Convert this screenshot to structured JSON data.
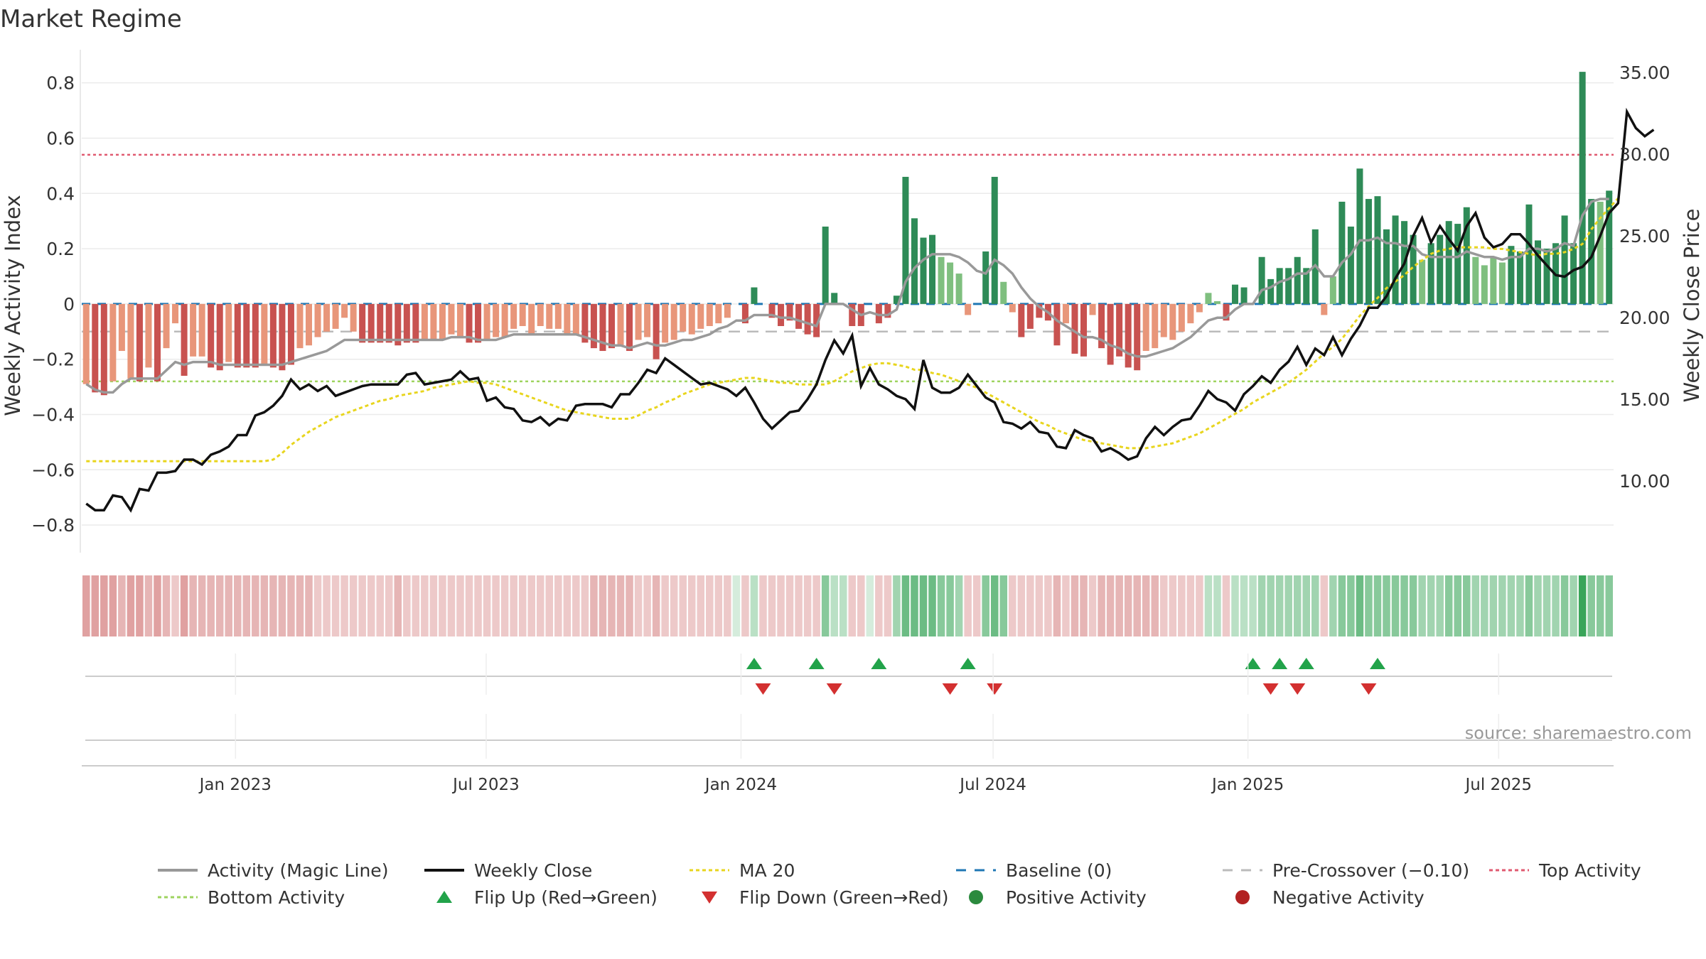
{
  "chart_data": {
    "type": "bar",
    "title": "Market Regime",
    "source": "source: sharemaestro.com",
    "ylabel_left": "Weekly Activity Index",
    "ylabel_right": "Weekly Close Price",
    "ylim_left": [
      -0.9,
      0.92
    ],
    "ylim_right": [
      5.6,
      36.4
    ],
    "yticks_left": [
      "−0.8",
      "−0.6",
      "−0.4",
      "−0.2",
      "0",
      "0.2",
      "0.4",
      "0.6",
      "0.8"
    ],
    "yticks_left_values": [
      -0.8,
      -0.6,
      -0.4,
      -0.2,
      0,
      0.2,
      0.4,
      0.6,
      0.8
    ],
    "yticks_right": [
      "10.00",
      "15.00",
      "20.00",
      "25.00",
      "30.00",
      "35.00"
    ],
    "yticks_right_values": [
      10,
      15,
      20,
      25,
      30,
      35
    ],
    "xticks": [
      "Jan 2023",
      "Jul 2023",
      "Jan 2024",
      "Jul 2024",
      "Jan 2025",
      "Jul 2025"
    ],
    "xticks_dates": [
      "2023-01-01",
      "2023-07-01",
      "2024-01-01",
      "2024-07-01",
      "2025-01-01",
      "2025-07-01"
    ],
    "x_start": "2022-09-12",
    "x_end": "2025-09-22",
    "grid": true,
    "legend_position": "bottom",
    "reference_lines": {
      "top_activity": 0.54,
      "bottom_activity": -0.28,
      "baseline": 0,
      "pre_crossover": -0.1
    },
    "activity_index": [
      -0.29,
      -0.32,
      -0.33,
      -0.28,
      -0.17,
      -0.27,
      -0.28,
      -0.23,
      -0.28,
      -0.16,
      -0.07,
      -0.26,
      -0.19,
      -0.19,
      -0.23,
      -0.24,
      -0.21,
      -0.23,
      -0.23,
      -0.23,
      -0.22,
      -0.23,
      -0.24,
      -0.22,
      -0.16,
      -0.15,
      -0.12,
      -0.1,
      -0.09,
      -0.05,
      -0.1,
      -0.14,
      -0.14,
      -0.14,
      -0.14,
      -0.15,
      -0.14,
      -0.14,
      -0.13,
      -0.13,
      -0.13,
      -0.11,
      -0.12,
      -0.14,
      -0.14,
      -0.13,
      -0.12,
      -0.12,
      -0.09,
      -0.08,
      -0.11,
      -0.08,
      -0.09,
      -0.09,
      -0.11,
      -0.11,
      -0.14,
      -0.16,
      -0.17,
      -0.16,
      -0.15,
      -0.17,
      -0.13,
      -0.12,
      -0.2,
      -0.14,
      -0.13,
      -0.1,
      -0.11,
      -0.09,
      -0.08,
      -0.07,
      -0.05,
      0.0,
      -0.07,
      0.06,
      0.0,
      -0.05,
      -0.08,
      -0.06,
      -0.09,
      -0.11,
      -0.12,
      0.28,
      0.04,
      0.0,
      -0.08,
      -0.08,
      0.0,
      -0.07,
      -0.05,
      0.03,
      0.46,
      0.31,
      0.24,
      0.25,
      0.17,
      0.15,
      0.11,
      -0.04,
      0.0,
      0.19,
      0.46,
      0.08,
      -0.03,
      -0.12,
      -0.09,
      -0.05,
      -0.06,
      -0.15,
      -0.07,
      -0.18,
      -0.19,
      -0.04,
      -0.16,
      -0.22,
      -0.19,
      -0.23,
      -0.24,
      -0.17,
      -0.16,
      -0.12,
      -0.13,
      -0.1,
      -0.07,
      -0.03,
      0.04,
      0.01,
      -0.06,
      0.07,
      0.06,
      0.0,
      0.17,
      0.09,
      0.13,
      0.13,
      0.17,
      0.13,
      0.27,
      -0.04,
      0.1,
      0.37,
      0.28,
      0.49,
      0.38,
      0.39,
      0.27,
      0.32,
      0.3,
      0.25,
      0.16,
      0.22,
      0.25,
      0.3,
      0.29,
      0.35,
      0.17,
      0.14,
      0.17,
      0.15,
      0.21,
      0.19,
      0.36,
      0.23,
      0.2,
      0.22,
      0.32,
      0.22,
      0.84,
      0.38,
      0.37,
      0.41
    ],
    "activity_magic_line": [
      -0.29,
      -0.31,
      -0.32,
      -0.32,
      -0.29,
      -0.27,
      -0.27,
      -0.27,
      -0.27,
      -0.24,
      -0.21,
      -0.22,
      -0.21,
      -0.21,
      -0.21,
      -0.22,
      -0.22,
      -0.22,
      -0.22,
      -0.22,
      -0.22,
      -0.22,
      -0.22,
      -0.21,
      -0.2,
      -0.19,
      -0.18,
      -0.17,
      -0.15,
      -0.13,
      -0.13,
      -0.13,
      -0.13,
      -0.13,
      -0.13,
      -0.13,
      -0.13,
      -0.13,
      -0.13,
      -0.13,
      -0.13,
      -0.12,
      -0.12,
      -0.12,
      -0.13,
      -0.13,
      -0.13,
      -0.12,
      -0.11,
      -0.11,
      -0.11,
      -0.11,
      -0.11,
      -0.11,
      -0.11,
      -0.11,
      -0.12,
      -0.13,
      -0.14,
      -0.15,
      -0.15,
      -0.16,
      -0.15,
      -0.14,
      -0.15,
      -0.15,
      -0.14,
      -0.13,
      -0.13,
      -0.12,
      -0.11,
      -0.09,
      -0.08,
      -0.06,
      -0.06,
      -0.04,
      -0.04,
      -0.04,
      -0.05,
      -0.05,
      -0.06,
      -0.07,
      -0.08,
      0.0,
      0.0,
      0.0,
      -0.02,
      -0.04,
      -0.03,
      -0.04,
      -0.04,
      -0.02,
      0.08,
      0.13,
      0.16,
      0.18,
      0.18,
      0.18,
      0.17,
      0.15,
      0.12,
      0.11,
      0.16,
      0.14,
      0.11,
      0.06,
      0.02,
      -0.01,
      -0.03,
      -0.06,
      -0.08,
      -0.1,
      -0.12,
      -0.12,
      -0.13,
      -0.15,
      -0.16,
      -0.18,
      -0.19,
      -0.19,
      -0.18,
      -0.17,
      -0.16,
      -0.14,
      -0.12,
      -0.09,
      -0.06,
      -0.05,
      -0.05,
      -0.02,
      0.0,
      0.0,
      0.05,
      0.06,
      0.08,
      0.09,
      0.11,
      0.11,
      0.14,
      0.1,
      0.1,
      0.15,
      0.18,
      0.23,
      0.23,
      0.24,
      0.22,
      0.22,
      0.21,
      0.21,
      0.18,
      0.17,
      0.17,
      0.17,
      0.17,
      0.19,
      0.18,
      0.17,
      0.17,
      0.16,
      0.17,
      0.17,
      0.2,
      0.2,
      0.19,
      0.2,
      0.22,
      0.21,
      0.32,
      0.37,
      0.38,
      0.38
    ],
    "weekly_close": [
      8.6,
      8.2,
      8.2,
      9.1,
      9.0,
      8.2,
      9.5,
      9.4,
      10.5,
      10.5,
      10.6,
      11.3,
      11.3,
      11.0,
      11.6,
      11.8,
      12.1,
      12.8,
      12.8,
      14.0,
      14.2,
      14.6,
      15.2,
      16.2,
      15.6,
      15.9,
      15.5,
      15.8,
      15.2,
      15.4,
      15.6,
      15.8,
      15.9,
      15.9,
      15.9,
      15.9,
      16.5,
      16.6,
      15.9,
      16.0,
      16.1,
      16.2,
      16.7,
      16.2,
      16.3,
      14.9,
      15.1,
      14.5,
      14.4,
      13.7,
      13.6,
      13.9,
      13.4,
      13.8,
      13.7,
      14.6,
      14.7,
      14.7,
      14.7,
      14.5,
      15.3,
      15.3,
      16.0,
      16.8,
      16.6,
      17.5,
      17.1,
      16.7,
      16.3,
      15.9,
      16.0,
      15.8,
      15.6,
      15.2,
      15.7,
      14.8,
      13.8,
      13.2,
      13.7,
      14.2,
      14.3,
      15.0,
      15.9,
      17.4,
      18.6,
      17.8,
      18.9,
      15.8,
      16.9,
      15.9,
      15.6,
      15.2,
      15.0,
      14.4,
      17.4,
      15.7,
      15.4,
      15.4,
      15.7,
      16.5,
      15.8,
      15.1,
      14.8,
      13.6,
      13.5,
      13.2,
      13.6,
      13.0,
      12.9,
      12.1,
      12.0,
      13.1,
      12.8,
      12.6,
      11.8,
      12.0,
      11.7,
      11.3,
      11.5,
      12.6,
      13.3,
      12.8,
      13.3,
      13.7,
      13.8,
      14.6,
      15.5,
      15.0,
      14.8,
      14.3,
      15.3,
      15.8,
      16.4,
      16.0,
      16.8,
      17.3,
      18.2,
      17.1,
      18.1,
      17.7,
      18.8,
      17.7,
      18.7,
      19.5,
      20.6,
      20.6,
      21.3,
      22.4,
      23.3,
      25.0,
      26.1,
      24.6,
      25.6,
      24.8,
      24.1,
      25.6,
      26.4,
      24.9,
      24.3,
      24.5,
      25.1,
      25.1,
      24.5,
      23.8,
      23.2,
      22.6,
      22.5,
      22.9,
      23.1,
      23.7,
      25.0,
      26.4,
      27.0,
      32.6,
      31.6,
      31.1,
      31.5
    ],
    "ma20": [
      11.2,
      11.2,
      11.2,
      11.2,
      11.2,
      11.2,
      11.2,
      11.2,
      11.2,
      11.2,
      11.2,
      11.2,
      11.2,
      11.2,
      11.2,
      11.2,
      11.2,
      11.2,
      11.2,
      11.2,
      11.2,
      11.3,
      11.7,
      12.2,
      12.6,
      13.0,
      13.3,
      13.6,
      13.9,
      14.1,
      14.3,
      14.5,
      14.7,
      14.9,
      15.0,
      15.2,
      15.3,
      15.4,
      15.5,
      15.7,
      15.8,
      15.9,
      16.0,
      16.1,
      16.0,
      16.0,
      15.9,
      15.7,
      15.5,
      15.3,
      15.1,
      14.9,
      14.7,
      14.5,
      14.3,
      14.2,
      14.1,
      14.0,
      13.9,
      13.8,
      13.8,
      13.8,
      14.0,
      14.3,
      14.5,
      14.8,
      15.0,
      15.3,
      15.5,
      15.7,
      15.9,
      16.0,
      16.1,
      16.2,
      16.3,
      16.3,
      16.2,
      16.1,
      16.0,
      16.0,
      15.9,
      15.9,
      15.9,
      15.9,
      16.1,
      16.4,
      16.7,
      16.9,
      17.1,
      17.2,
      17.2,
      17.1,
      17.0,
      16.8,
      16.8,
      16.6,
      16.5,
      16.3,
      16.1,
      15.9,
      15.7,
      15.4,
      15.1,
      14.8,
      14.5,
      14.2,
      13.9,
      13.6,
      13.4,
      13.1,
      12.9,
      12.7,
      12.5,
      12.4,
      12.3,
      12.2,
      12.1,
      12.0,
      12.0,
      12.0,
      12.1,
      12.2,
      12.3,
      12.5,
      12.7,
      12.9,
      13.2,
      13.5,
      13.8,
      14.1,
      14.4,
      14.8,
      15.1,
      15.4,
      15.7,
      16.0,
      16.4,
      16.8,
      17.3,
      17.8,
      18.2,
      18.7,
      19.4,
      20.1,
      20.7,
      21.2,
      21.8,
      22.2,
      22.6,
      23.1,
      23.5,
      23.9,
      24.1,
      24.2,
      24.3,
      24.3,
      24.3,
      24.3,
      24.2,
      24.2,
      24.1,
      24.0,
      23.9,
      23.8,
      23.9,
      23.9,
      24.0,
      24.2,
      24.5,
      25.4,
      26.1,
      26.7,
      27.3
    ],
    "regime_strip": [
      -0.3,
      -0.3,
      -0.3,
      -0.3,
      -0.2,
      -0.3,
      -0.3,
      -0.2,
      -0.3,
      -0.2,
      -0.1,
      -0.3,
      -0.2,
      -0.2,
      -0.2,
      -0.2,
      -0.2,
      -0.2,
      -0.2,
      -0.2,
      -0.2,
      -0.2,
      -0.2,
      -0.2,
      -0.2,
      -0.2,
      -0.1,
      -0.1,
      -0.1,
      -0.1,
      -0.1,
      -0.1,
      -0.1,
      -0.1,
      -0.1,
      -0.2,
      -0.1,
      -0.1,
      -0.1,
      -0.1,
      -0.1,
      -0.1,
      -0.1,
      -0.1,
      -0.1,
      -0.1,
      -0.1,
      -0.1,
      -0.1,
      -0.1,
      -0.1,
      -0.1,
      -0.1,
      -0.1,
      -0.1,
      -0.1,
      -0.1,
      -0.2,
      -0.2,
      -0.2,
      -0.2,
      -0.2,
      -0.1,
      -0.1,
      -0.2,
      -0.1,
      -0.1,
      -0.1,
      -0.1,
      -0.1,
      -0.1,
      -0.1,
      -0.1,
      0.0,
      -0.1,
      0.1,
      -0.1,
      -0.1,
      -0.1,
      -0.1,
      -0.1,
      -0.1,
      -0.1,
      0.3,
      0.1,
      0.1,
      -0.1,
      -0.1,
      0.0,
      -0.1,
      -0.1,
      0.2,
      0.4,
      0.4,
      0.4,
      0.4,
      0.3,
      0.3,
      0.2,
      -0.1,
      -0.1,
      0.3,
      0.4,
      0.3,
      -0.1,
      -0.1,
      -0.1,
      -0.1,
      -0.1,
      -0.2,
      -0.1,
      -0.2,
      -0.2,
      -0.1,
      -0.2,
      -0.2,
      -0.2,
      -0.2,
      -0.2,
      -0.2,
      -0.2,
      -0.1,
      -0.1,
      -0.1,
      -0.1,
      -0.1,
      0.1,
      0.1,
      -0.1,
      0.1,
      0.1,
      0.1,
      0.2,
      0.2,
      0.2,
      0.2,
      0.2,
      0.2,
      0.2,
      -0.1,
      0.2,
      0.3,
      0.3,
      0.4,
      0.3,
      0.3,
      0.3,
      0.3,
      0.3,
      0.3,
      0.2,
      0.2,
      0.2,
      0.3,
      0.3,
      0.3,
      0.2,
      0.2,
      0.2,
      0.2,
      0.2,
      0.2,
      0.3,
      0.2,
      0.2,
      0.2,
      0.3,
      0.2,
      0.6,
      0.3,
      0.3,
      0.3
    ],
    "flip_up_weeks": [
      75,
      82,
      89,
      99,
      131,
      134,
      137,
      145
    ],
    "flip_down_weeks": [
      76,
      84,
      97,
      102,
      133,
      136,
      144
    ]
  },
  "legend": [
    {
      "label": "Activity (Magic Line)",
      "icon": "solid-line-icon",
      "color": "#999999"
    },
    {
      "label": "Weekly Close",
      "icon": "solid-line-icon",
      "color": "#111111"
    },
    {
      "label": "MA 20",
      "icon": "dotted-line-icon",
      "color": "#e8d51e"
    },
    {
      "label": "Baseline (0)",
      "icon": "dashed-line-icon",
      "color": "#1f77b4"
    },
    {
      "label": "Pre-Crossover (−0.10)",
      "icon": "dashed-line-icon",
      "color": "#bbbbbb"
    },
    {
      "label": "Top Activity",
      "icon": "dotted-line-icon",
      "color": "#e05a70"
    },
    {
      "label": "Bottom Activity",
      "icon": "dotted-line-icon",
      "color": "#9ed35f"
    },
    {
      "label": "Flip Up (Red→Green)",
      "icon": "triangle-up-icon",
      "color": "#22a34a"
    },
    {
      "label": "Flip Down (Green→Red)",
      "icon": "triangle-down-icon",
      "color": "#d33030"
    },
    {
      "label": "Positive Activity",
      "icon": "circle-icon",
      "color": "#2b8a3e"
    },
    {
      "label": "Negative Activity",
      "icon": "circle-icon",
      "color": "#b22222"
    }
  ],
  "colors": {
    "strong_positive": "#2e8b57",
    "light_positive": "#7fbf7f",
    "strong_negative": "#c85250",
    "light_negative": "#e8967a",
    "activity_line": "#999999",
    "close_line": "#111111",
    "ma_line": "#e8d51e",
    "baseline": "#1f77b4",
    "pre_crossover": "#bbbbbb",
    "top_activity": "#e05a70",
    "bottom_activity": "#9ed35f",
    "grid": "#ebebeb"
  }
}
